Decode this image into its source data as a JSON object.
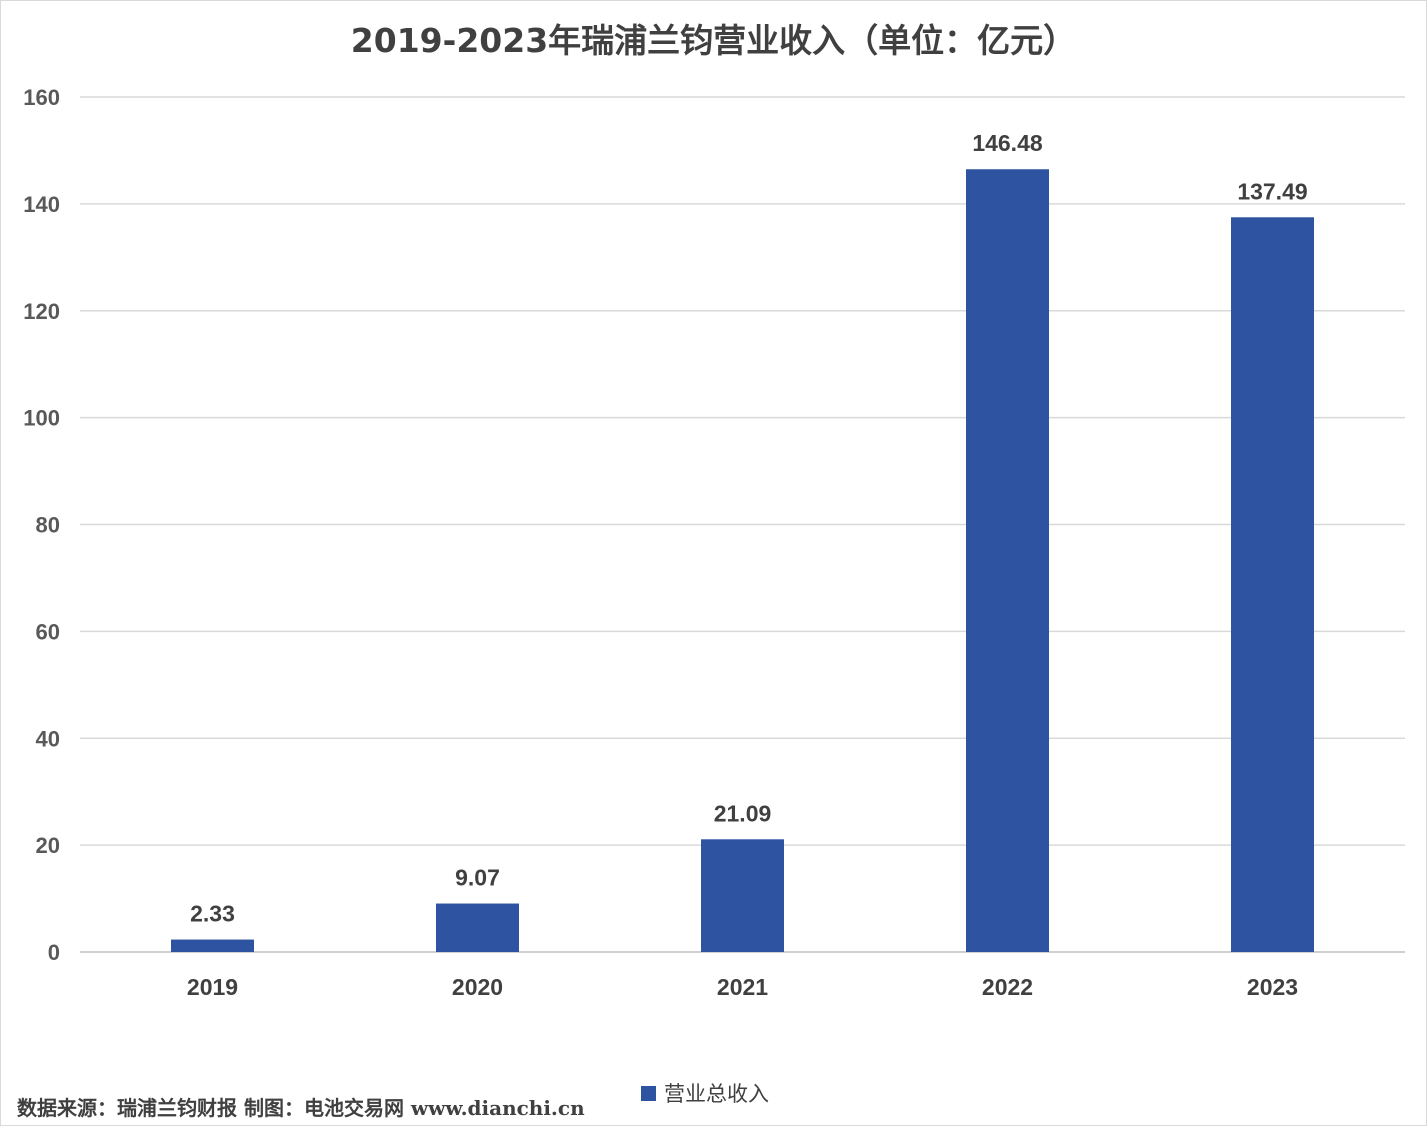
{
  "chart_data": {
    "type": "bar",
    "title": "2019-2023年瑞浦兰钧营业收入（单位：亿元）",
    "categories": [
      "2019",
      "2020",
      "2021",
      "2022",
      "2023"
    ],
    "series": [
      {
        "name": "营业总收入",
        "values": [
          2.33,
          9.07,
          21.09,
          146.48,
          137.49
        ],
        "color": "#2e54a1"
      }
    ],
    "data_labels": [
      "2.33",
      "9.07",
      "21.09",
      "146.48",
      "137.49"
    ],
    "ylim": [
      0,
      160
    ],
    "yticks": [
      0,
      20,
      40,
      60,
      80,
      100,
      120,
      140,
      160
    ],
    "grid": true,
    "legend_position": "bottom"
  },
  "footer": {
    "source": "数据来源：瑞浦兰钧财报  制图：电池交易网 www.dianchi.cn"
  }
}
